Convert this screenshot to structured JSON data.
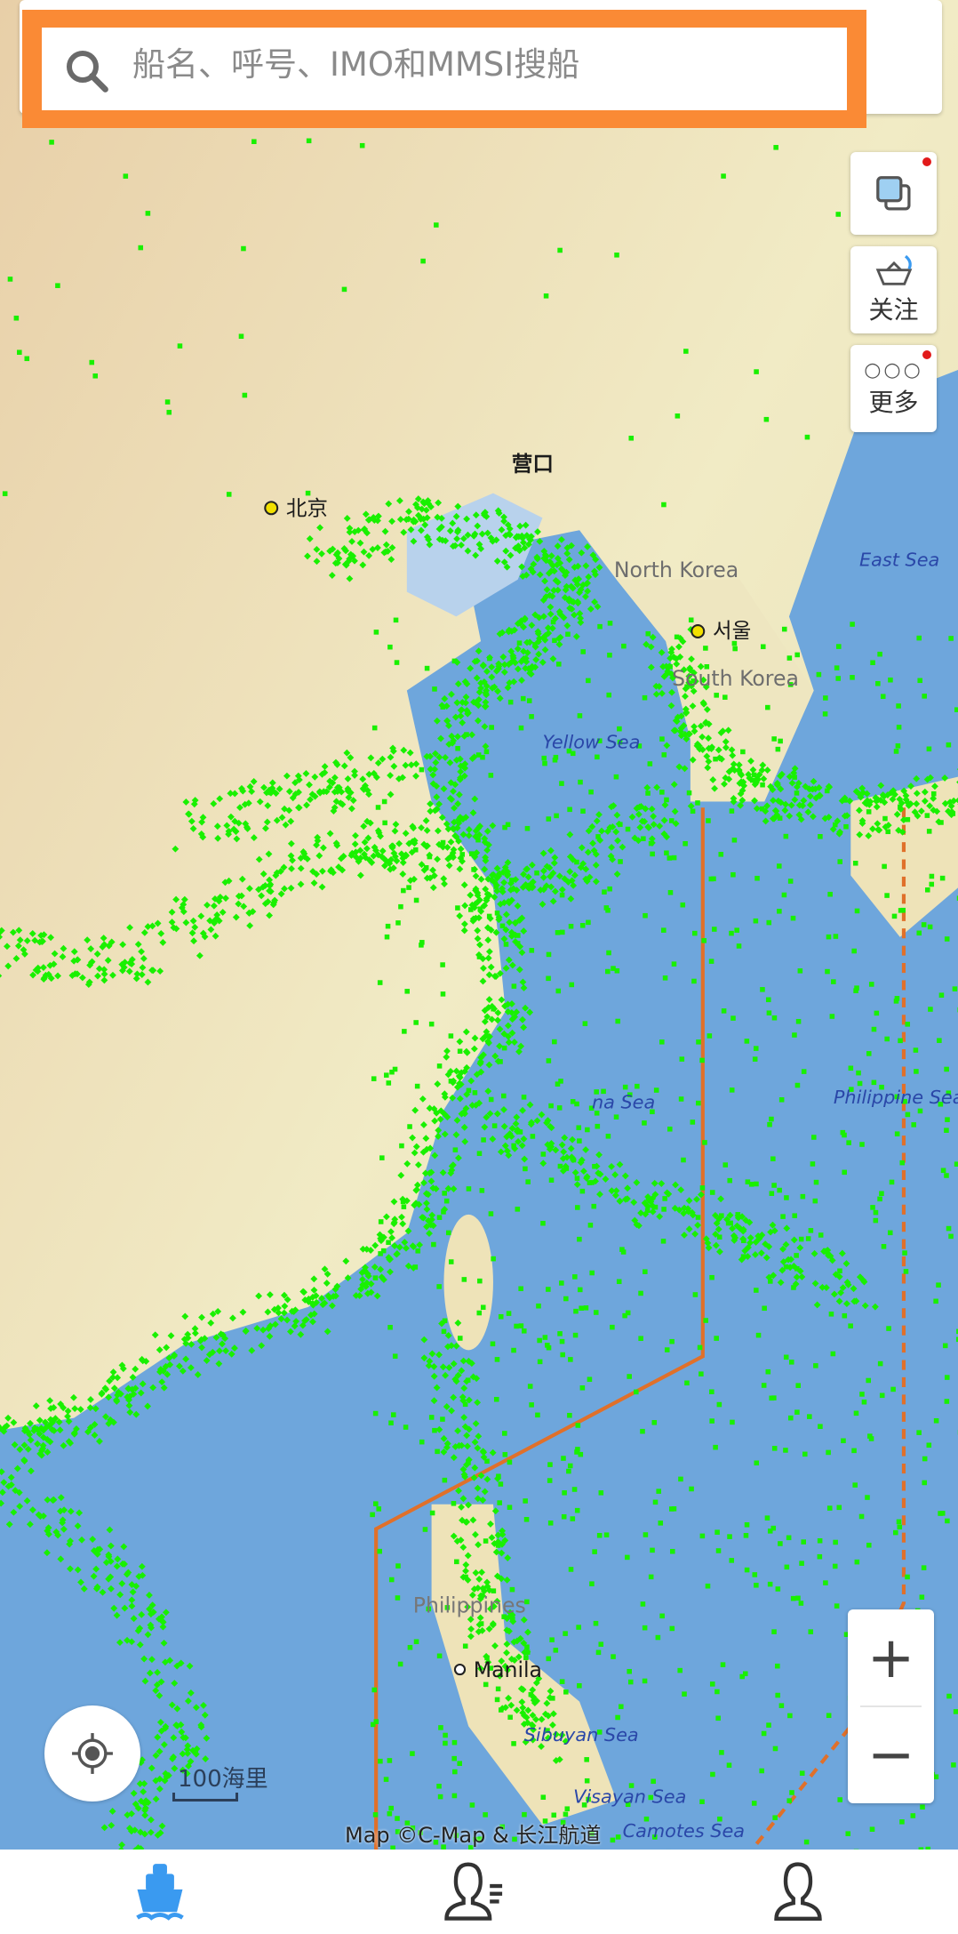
{
  "search": {
    "placeholder": "船名、呼号、IMO和MMSI搜船",
    "icon": "search-icon"
  },
  "side_buttons": [
    {
      "label": "",
      "icon": "layers-icon",
      "badge": true
    },
    {
      "label": "关注",
      "icon": "follow-ship-icon",
      "badge": false
    },
    {
      "label": "更多",
      "icon": "more-icon",
      "badge": true
    }
  ],
  "zoom": {
    "in": "+",
    "out": "−"
  },
  "scale_label": "100海里",
  "attribution": "Map ©C-Map & 长江航道",
  "map_labels": {
    "yingkou": "营口",
    "beijing": "北京",
    "north_korea": "North Korea",
    "seoul": "서울",
    "south_korea": "South Korea",
    "yellow_sea": "Yellow Sea",
    "east_sea": "East Sea",
    "philippine_sea": "Philippine Sea",
    "philippines": "Philippines",
    "manila": "Manila",
    "sibuyan_sea": "Sibuyan Sea",
    "visayan_sea": "Visayan Sea",
    "camotes_sea": "Camotes Sea",
    "east_china_sea": "na Sea"
  },
  "colors": {
    "accent": "#3a9af0",
    "highlight": "#fa8a35",
    "ship": "#19f000",
    "sea": "#6ea6dc",
    "land": "#efe8c4",
    "boundary": "#e0702a"
  },
  "nav": [
    {
      "icon": "ship-icon",
      "active": true
    },
    {
      "icon": "contacts-icon",
      "active": false
    },
    {
      "icon": "profile-icon",
      "active": false
    }
  ]
}
